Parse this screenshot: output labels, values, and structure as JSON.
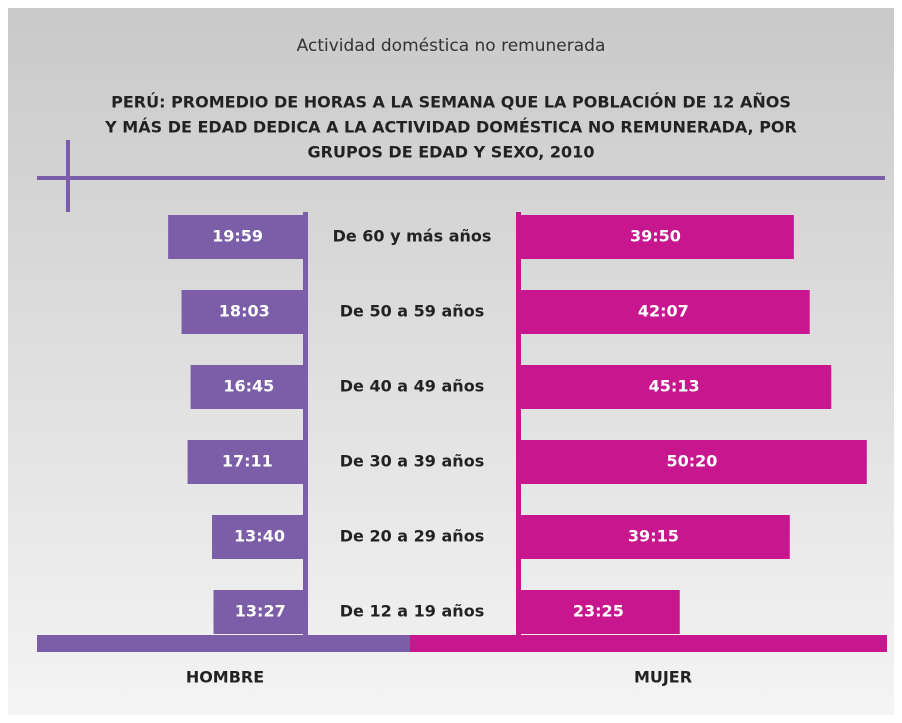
{
  "chart_data": {
    "type": "butterfly",
    "title": "Actividad doméstica no remunerada",
    "subtitle": [
      "PERÚ: PROMEDIO DE HORAS A LA SEMANA QUE LA POBLACIÓN DE 12 AÑOS",
      "Y MÁS DE EDAD DEDICA A LA ACTIVIDAD DOMÉSTICA NO REMUNERADA, POR",
      "GRUPOS DE EDAD Y SEXO, 2010"
    ],
    "categories": [
      "De 60 y más años",
      "De 50 a 59 años",
      "De 40 a 49 años",
      "De 30 a 39 años",
      "De 20 a 29 años",
      "De 12 a 19 años"
    ],
    "series": [
      {
        "name": "HOMBRE",
        "color": "#7b5ea7",
        "values": [
          19.9833,
          18.05,
          16.75,
          17.1833,
          13.6667,
          13.45
        ],
        "value_labels": [
          "19:59",
          "18:03",
          "16:45",
          "17:11",
          "13:40",
          "13:27"
        ]
      },
      {
        "name": "MUJER",
        "color": "#c8168e",
        "values": [
          39.8333,
          42.1167,
          45.2167,
          50.3333,
          39.25,
          23.4167
        ],
        "value_labels": [
          "39:50",
          "42:07",
          "45:13",
          "50:20",
          "39:15",
          "23:25"
        ]
      }
    ]
  }
}
